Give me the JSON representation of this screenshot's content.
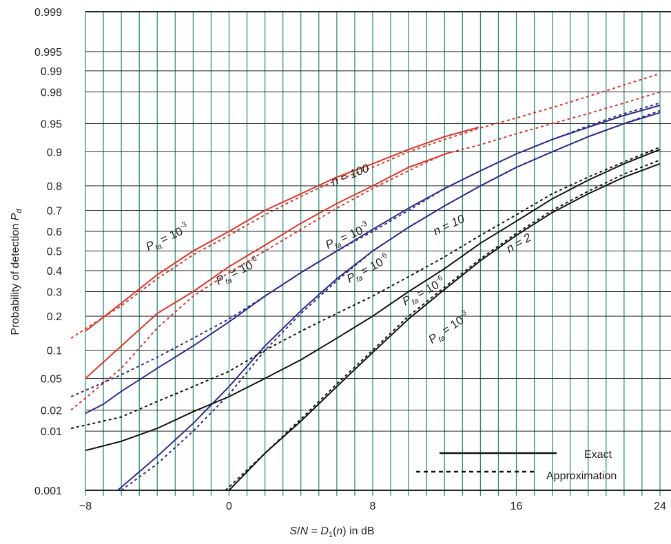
{
  "chart_data": {
    "type": "line",
    "title": "",
    "xlabel": "S/N = D1(n) in dB",
    "ylabel": "Probability of detection Pd",
    "xlim": [
      -8,
      24
    ],
    "yscale": "normal-probability",
    "ylim": [
      0.001,
      0.999
    ],
    "x_tick_labels": [
      {
        "value": -8,
        "text": "−8"
      },
      {
        "value": 0,
        "text": "0"
      },
      {
        "value": 8,
        "text": "8"
      },
      {
        "value": 16,
        "text": "16"
      },
      {
        "value": 24,
        "text": "24"
      }
    ],
    "y_ticks": [
      0.001,
      0.01,
      0.02,
      0.05,
      0.1,
      0.2,
      0.3,
      0.4,
      0.5,
      0.6,
      0.7,
      0.8,
      0.9,
      0.95,
      0.98,
      0.99,
      0.995,
      0.999
    ],
    "y_tick_labels": [
      "0.001",
      "0.01",
      "0.02",
      "0.05",
      "0.1",
      "0.2",
      "0.3",
      "0.4",
      "0.5",
      "0.6",
      "0.7",
      "0.8",
      "0.9",
      "0.95",
      "0.98",
      "0.99",
      "0.995",
      "0.999"
    ],
    "grid": "vertical lines every 1 dB, horizontal lines at each y tick",
    "legend_position": "bottom-right",
    "legend": [
      {
        "label": "Exact",
        "style": "solid"
      },
      {
        "label": "Approximation",
        "style": "dashed"
      }
    ],
    "colors": {
      "n100": "#e03228",
      "n10": "#2e2a8c",
      "n2": "#111111",
      "grid_vertical": "#1f8a70",
      "grid_horizontal": "#222222"
    },
    "series": [
      {
        "group": "n100",
        "pfa": "1e-3",
        "style": "solid",
        "x": [
          -8,
          -6,
          -4,
          -2,
          0,
          2,
          4,
          6,
          8,
          10,
          12,
          13.9
        ],
        "y": [
          0.15,
          0.25,
          0.38,
          0.5,
          0.6,
          0.7,
          0.77,
          0.83,
          0.87,
          0.905,
          0.93,
          0.945
        ]
      },
      {
        "group": "n100",
        "pfa": "1e-3",
        "style": "dashed",
        "x": [
          -8.8,
          -6,
          -4,
          -2,
          0,
          2,
          4,
          6,
          8,
          10,
          12,
          14,
          16,
          18,
          20,
          22,
          24
        ],
        "y": [
          0.13,
          0.24,
          0.36,
          0.48,
          0.58,
          0.68,
          0.76,
          0.82,
          0.86,
          0.9,
          0.925,
          0.944,
          0.957,
          0.968,
          0.977,
          0.984,
          0.989
        ]
      },
      {
        "group": "n100",
        "pfa": "1e-6",
        "style": "solid",
        "x": [
          -8,
          -6,
          -4,
          -2,
          0,
          2,
          4,
          6,
          8,
          10,
          12.4
        ],
        "y": [
          0.05,
          0.11,
          0.21,
          0.3,
          0.42,
          0.53,
          0.64,
          0.73,
          0.8,
          0.86,
          0.9
        ]
      },
      {
        "group": "n100",
        "pfa": "1e-6",
        "style": "dashed",
        "x": [
          -8.8,
          -6,
          -4,
          -2,
          0,
          2,
          4,
          6,
          8,
          10,
          12,
          14,
          16,
          18,
          20,
          22,
          24
        ],
        "y": [
          0.02,
          0.065,
          0.16,
          0.28,
          0.39,
          0.5,
          0.61,
          0.71,
          0.79,
          0.85,
          0.895,
          0.915,
          0.935,
          0.95,
          0.962,
          0.972,
          0.98
        ]
      },
      {
        "group": "n10",
        "pfa": "1e-3",
        "style": "solid",
        "x": [
          -8,
          -7,
          -6,
          -4,
          -2,
          0,
          2,
          4,
          6,
          8,
          10,
          12,
          14,
          16,
          18,
          20,
          22,
          24
        ],
        "y": [
          0.018,
          0.024,
          0.035,
          0.065,
          0.11,
          0.18,
          0.28,
          0.39,
          0.5,
          0.61,
          0.71,
          0.79,
          0.85,
          0.895,
          0.925,
          0.945,
          0.96,
          0.97
        ]
      },
      {
        "group": "n10",
        "pfa": "1e-3",
        "style": "dashed",
        "x": [
          -8.8,
          -6,
          -4,
          -2,
          0,
          2,
          4,
          6,
          8,
          10,
          12,
          14,
          16,
          18,
          20,
          22,
          24
        ],
        "y": [
          0.03,
          0.055,
          0.085,
          0.13,
          0.19,
          0.28,
          0.39,
          0.5,
          0.6,
          0.7,
          0.79,
          0.85,
          0.895,
          0.925,
          0.947,
          0.962,
          0.972
        ]
      },
      {
        "group": "n10",
        "pfa": "1e-6",
        "style": "solid",
        "x": [
          -6.2,
          -4,
          -2,
          0,
          2,
          4,
          6,
          8,
          10,
          12,
          14,
          16,
          18,
          20,
          22,
          24
        ],
        "y": [
          0.001,
          0.004,
          0.013,
          0.04,
          0.11,
          0.22,
          0.36,
          0.5,
          0.62,
          0.72,
          0.8,
          0.86,
          0.9,
          0.93,
          0.95,
          0.963
        ]
      },
      {
        "group": "n10",
        "pfa": "1e-6",
        "style": "dashed",
        "x": [
          -6,
          -4,
          -2,
          0,
          2,
          4,
          6,
          8,
          10,
          12,
          14,
          16,
          18,
          20,
          22,
          24
        ],
        "y": [
          0.001,
          0.003,
          0.01,
          0.032,
          0.1,
          0.21,
          0.35,
          0.5,
          0.62,
          0.72,
          0.8,
          0.86,
          0.9,
          0.93,
          0.95,
          0.965
        ]
      },
      {
        "group": "n2",
        "pfa": "1e-3",
        "style": "solid",
        "x": [
          -8,
          -6,
          -4,
          -2,
          0,
          2,
          4,
          6,
          8,
          10,
          12,
          14,
          16,
          18,
          20,
          22,
          24
        ],
        "y": [
          0.005,
          0.007,
          0.011,
          0.019,
          0.03,
          0.05,
          0.08,
          0.13,
          0.2,
          0.3,
          0.41,
          0.54,
          0.65,
          0.75,
          0.82,
          0.87,
          0.905
        ]
      },
      {
        "group": "n2",
        "pfa": "1e-3",
        "style": "dashed",
        "x": [
          -8.8,
          -6,
          -4,
          -2,
          0,
          2,
          4,
          6,
          8,
          10,
          12,
          14,
          16,
          18,
          20,
          22,
          24
        ],
        "y": [
          0.011,
          0.016,
          0.026,
          0.04,
          0.06,
          0.1,
          0.15,
          0.21,
          0.28,
          0.37,
          0.47,
          0.58,
          0.68,
          0.77,
          0.83,
          0.875,
          0.91
        ]
      },
      {
        "group": "n2",
        "pfa": "1e-6",
        "style": "solid",
        "x": [
          0,
          2,
          4,
          6,
          8,
          10,
          12,
          14,
          16,
          18,
          20,
          22,
          24
        ],
        "y": [
          0.001,
          0.0045,
          0.014,
          0.04,
          0.095,
          0.19,
          0.31,
          0.45,
          0.58,
          0.69,
          0.77,
          0.83,
          0.87
        ]
      },
      {
        "group": "n2",
        "pfa": "1e-6",
        "style": "dashed",
        "x": [
          -0.2,
          2,
          4,
          6,
          8,
          10,
          12,
          14,
          16,
          18,
          20,
          22,
          24
        ],
        "y": [
          0.001,
          0.0045,
          0.015,
          0.043,
          0.1,
          0.2,
          0.32,
          0.46,
          0.59,
          0.7,
          0.78,
          0.84,
          0.88
        ]
      }
    ],
    "annotations": [
      {
        "text": "n = 100",
        "x": 5.8,
        "y": 0.8,
        "angle": -22
      },
      {
        "text": "n = 10",
        "x": 11.5,
        "y": 0.58,
        "angle": -25
      },
      {
        "text": "n = 2",
        "x": 15.6,
        "y": 0.49,
        "angle": -30
      },
      {
        "text": "P",
        "sub": "fa",
        "text2": "= 10",
        "sup": "-3",
        "x": -4.5,
        "y": 0.5,
        "angle": -26
      },
      {
        "text": "P",
        "sub": "fa",
        "text2": "= 10",
        "sup": "-6",
        "x": -0.6,
        "y": 0.33,
        "angle": -26
      },
      {
        "text": "P",
        "sub": "fa",
        "text2": "= 10",
        "sup": "-3",
        "x": 5.5,
        "y": 0.51,
        "angle": -24
      },
      {
        "text": "P",
        "sub": "fa",
        "text2": "= 10",
        "sup": "-6",
        "x": 6.7,
        "y": 0.34,
        "angle": -28
      },
      {
        "text": "P",
        "sub": "fa",
        "text2": "= 10",
        "sup": "-6",
        "x": 9.8,
        "y": 0.24,
        "angle": -28
      },
      {
        "text": "P",
        "sub": "fa",
        "text2": "= 10",
        "sup": "-3",
        "x": 11.3,
        "y": 0.115,
        "angle": -34
      }
    ]
  }
}
